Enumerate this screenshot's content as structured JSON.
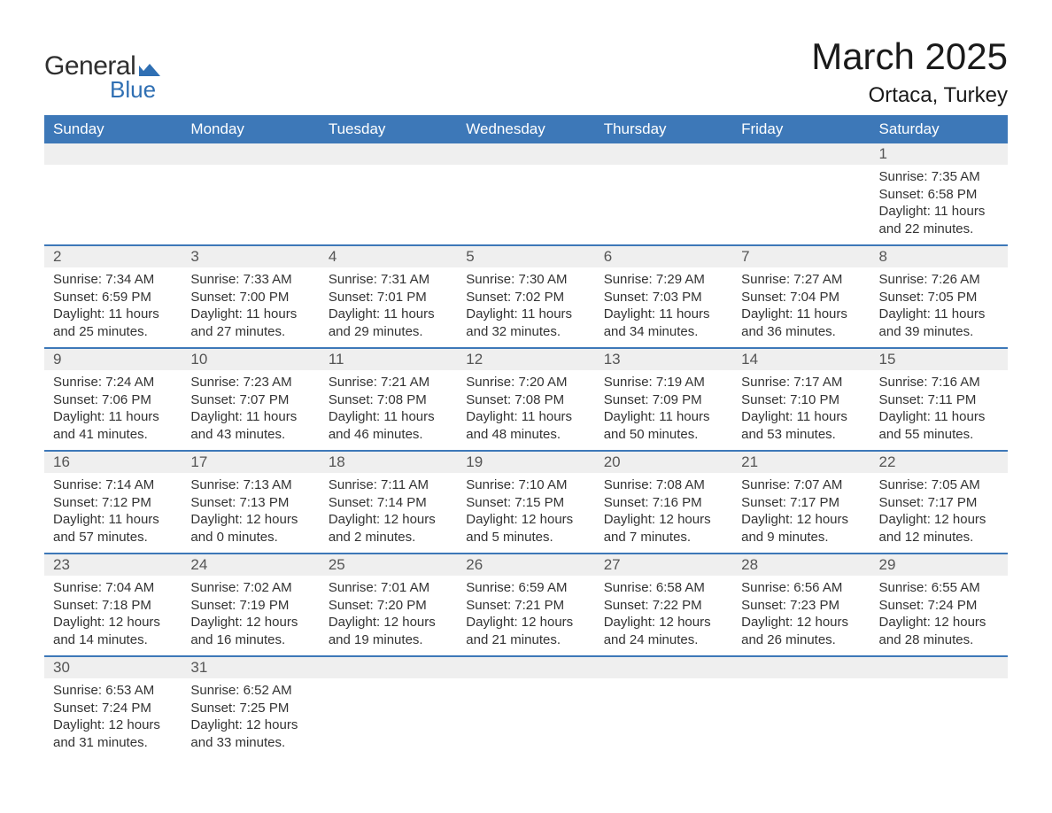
{
  "logo": {
    "text_top": "General",
    "text_bottom": "Blue",
    "shape_color": "#2f6fb3",
    "text_top_color": "#2f2f2f",
    "text_bottom_color": "#2f6fb3"
  },
  "header": {
    "month_title": "March 2025",
    "location": "Ortaca, Turkey"
  },
  "colors": {
    "header_bg": "#3d78b8",
    "header_text": "#ffffff",
    "daynum_bg": "#efefef",
    "border_accent": "#3d78b8",
    "body_text": "#333333",
    "page_bg": "#ffffff"
  },
  "day_headers": [
    "Sunday",
    "Monday",
    "Tuesday",
    "Wednesday",
    "Thursday",
    "Friday",
    "Saturday"
  ],
  "weeks": [
    [
      null,
      null,
      null,
      null,
      null,
      null,
      {
        "n": "1",
        "sunrise": "Sunrise: 7:35 AM",
        "sunset": "Sunset: 6:58 PM",
        "d1": "Daylight: 11 hours",
        "d2": "and 22 minutes."
      }
    ],
    [
      {
        "n": "2",
        "sunrise": "Sunrise: 7:34 AM",
        "sunset": "Sunset: 6:59 PM",
        "d1": "Daylight: 11 hours",
        "d2": "and 25 minutes."
      },
      {
        "n": "3",
        "sunrise": "Sunrise: 7:33 AM",
        "sunset": "Sunset: 7:00 PM",
        "d1": "Daylight: 11 hours",
        "d2": "and 27 minutes."
      },
      {
        "n": "4",
        "sunrise": "Sunrise: 7:31 AM",
        "sunset": "Sunset: 7:01 PM",
        "d1": "Daylight: 11 hours",
        "d2": "and 29 minutes."
      },
      {
        "n": "5",
        "sunrise": "Sunrise: 7:30 AM",
        "sunset": "Sunset: 7:02 PM",
        "d1": "Daylight: 11 hours",
        "d2": "and 32 minutes."
      },
      {
        "n": "6",
        "sunrise": "Sunrise: 7:29 AM",
        "sunset": "Sunset: 7:03 PM",
        "d1": "Daylight: 11 hours",
        "d2": "and 34 minutes."
      },
      {
        "n": "7",
        "sunrise": "Sunrise: 7:27 AM",
        "sunset": "Sunset: 7:04 PM",
        "d1": "Daylight: 11 hours",
        "d2": "and 36 minutes."
      },
      {
        "n": "8",
        "sunrise": "Sunrise: 7:26 AM",
        "sunset": "Sunset: 7:05 PM",
        "d1": "Daylight: 11 hours",
        "d2": "and 39 minutes."
      }
    ],
    [
      {
        "n": "9",
        "sunrise": "Sunrise: 7:24 AM",
        "sunset": "Sunset: 7:06 PM",
        "d1": "Daylight: 11 hours",
        "d2": "and 41 minutes."
      },
      {
        "n": "10",
        "sunrise": "Sunrise: 7:23 AM",
        "sunset": "Sunset: 7:07 PM",
        "d1": "Daylight: 11 hours",
        "d2": "and 43 minutes."
      },
      {
        "n": "11",
        "sunrise": "Sunrise: 7:21 AM",
        "sunset": "Sunset: 7:08 PM",
        "d1": "Daylight: 11 hours",
        "d2": "and 46 minutes."
      },
      {
        "n": "12",
        "sunrise": "Sunrise: 7:20 AM",
        "sunset": "Sunset: 7:08 PM",
        "d1": "Daylight: 11 hours",
        "d2": "and 48 minutes."
      },
      {
        "n": "13",
        "sunrise": "Sunrise: 7:19 AM",
        "sunset": "Sunset: 7:09 PM",
        "d1": "Daylight: 11 hours",
        "d2": "and 50 minutes."
      },
      {
        "n": "14",
        "sunrise": "Sunrise: 7:17 AM",
        "sunset": "Sunset: 7:10 PM",
        "d1": "Daylight: 11 hours",
        "d2": "and 53 minutes."
      },
      {
        "n": "15",
        "sunrise": "Sunrise: 7:16 AM",
        "sunset": "Sunset: 7:11 PM",
        "d1": "Daylight: 11 hours",
        "d2": "and 55 minutes."
      }
    ],
    [
      {
        "n": "16",
        "sunrise": "Sunrise: 7:14 AM",
        "sunset": "Sunset: 7:12 PM",
        "d1": "Daylight: 11 hours",
        "d2": "and 57 minutes."
      },
      {
        "n": "17",
        "sunrise": "Sunrise: 7:13 AM",
        "sunset": "Sunset: 7:13 PM",
        "d1": "Daylight: 12 hours",
        "d2": "and 0 minutes."
      },
      {
        "n": "18",
        "sunrise": "Sunrise: 7:11 AM",
        "sunset": "Sunset: 7:14 PM",
        "d1": "Daylight: 12 hours",
        "d2": "and 2 minutes."
      },
      {
        "n": "19",
        "sunrise": "Sunrise: 7:10 AM",
        "sunset": "Sunset: 7:15 PM",
        "d1": "Daylight: 12 hours",
        "d2": "and 5 minutes."
      },
      {
        "n": "20",
        "sunrise": "Sunrise: 7:08 AM",
        "sunset": "Sunset: 7:16 PM",
        "d1": "Daylight: 12 hours",
        "d2": "and 7 minutes."
      },
      {
        "n": "21",
        "sunrise": "Sunrise: 7:07 AM",
        "sunset": "Sunset: 7:17 PM",
        "d1": "Daylight: 12 hours",
        "d2": "and 9 minutes."
      },
      {
        "n": "22",
        "sunrise": "Sunrise: 7:05 AM",
        "sunset": "Sunset: 7:17 PM",
        "d1": "Daylight: 12 hours",
        "d2": "and 12 minutes."
      }
    ],
    [
      {
        "n": "23",
        "sunrise": "Sunrise: 7:04 AM",
        "sunset": "Sunset: 7:18 PM",
        "d1": "Daylight: 12 hours",
        "d2": "and 14 minutes."
      },
      {
        "n": "24",
        "sunrise": "Sunrise: 7:02 AM",
        "sunset": "Sunset: 7:19 PM",
        "d1": "Daylight: 12 hours",
        "d2": "and 16 minutes."
      },
      {
        "n": "25",
        "sunrise": "Sunrise: 7:01 AM",
        "sunset": "Sunset: 7:20 PM",
        "d1": "Daylight: 12 hours",
        "d2": "and 19 minutes."
      },
      {
        "n": "26",
        "sunrise": "Sunrise: 6:59 AM",
        "sunset": "Sunset: 7:21 PM",
        "d1": "Daylight: 12 hours",
        "d2": "and 21 minutes."
      },
      {
        "n": "27",
        "sunrise": "Sunrise: 6:58 AM",
        "sunset": "Sunset: 7:22 PM",
        "d1": "Daylight: 12 hours",
        "d2": "and 24 minutes."
      },
      {
        "n": "28",
        "sunrise": "Sunrise: 6:56 AM",
        "sunset": "Sunset: 7:23 PM",
        "d1": "Daylight: 12 hours",
        "d2": "and 26 minutes."
      },
      {
        "n": "29",
        "sunrise": "Sunrise: 6:55 AM",
        "sunset": "Sunset: 7:24 PM",
        "d1": "Daylight: 12 hours",
        "d2": "and 28 minutes."
      }
    ],
    [
      {
        "n": "30",
        "sunrise": "Sunrise: 6:53 AM",
        "sunset": "Sunset: 7:24 PM",
        "d1": "Daylight: 12 hours",
        "d2": "and 31 minutes."
      },
      {
        "n": "31",
        "sunrise": "Sunrise: 6:52 AM",
        "sunset": "Sunset: 7:25 PM",
        "d1": "Daylight: 12 hours",
        "d2": "and 33 minutes."
      },
      null,
      null,
      null,
      null,
      null
    ]
  ]
}
